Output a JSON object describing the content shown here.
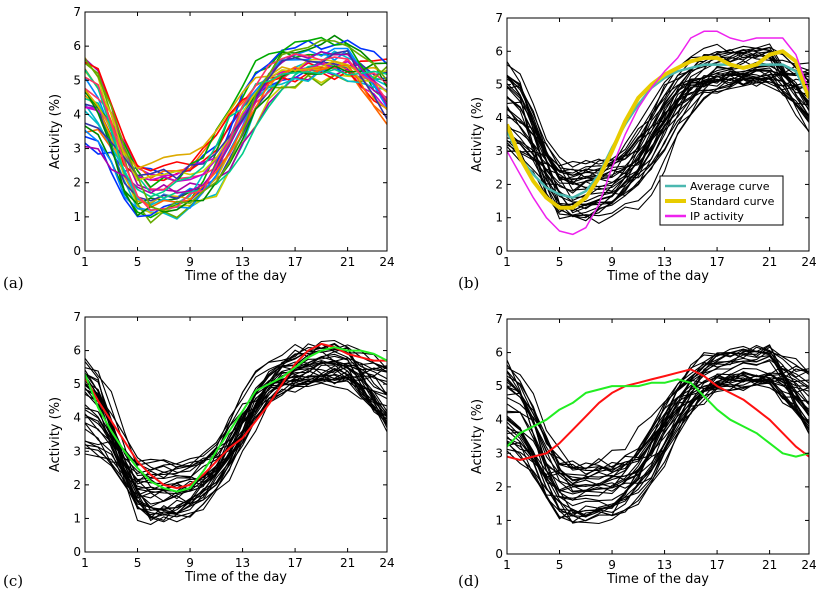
{
  "colors": {
    "black": "#000000",
    "cyan": "#4bb8b0",
    "yellow": "#e8cc00",
    "magenta": "#ee22ee",
    "red": "#ff1111",
    "green": "#22ee22",
    "palette": [
      "#0033ff",
      "#ff0000",
      "#00aa00",
      "#00bbcc",
      "#cc00cc",
      "#cccc00",
      "#0088ff",
      "#ff6600",
      "#008800",
      "#aa00aa",
      "#ddaa00",
      "#3333aa",
      "#00cc88",
      "#ff3366",
      "#66aa00"
    ]
  },
  "chart_data": [
    {
      "type": "line",
      "panel_label": "(a)",
      "xlabel": "Time of the day",
      "ylabel": "Activity (%)",
      "xlim": [
        1,
        24
      ],
      "ylim": [
        0,
        7
      ],
      "xticks": [
        1,
        5,
        9,
        13,
        17,
        21,
        24
      ],
      "yticks": [
        0,
        1,
        2,
        3,
        4,
        5,
        6,
        7
      ],
      "x": [
        1,
        2,
        3,
        4,
        5,
        6,
        7,
        8,
        9,
        10,
        11,
        12,
        13,
        14,
        15,
        16,
        17,
        18,
        19,
        20,
        21,
        22,
        23,
        24
      ],
      "background": "colored",
      "legend": null,
      "extra_series": []
    },
    {
      "type": "line",
      "panel_label": "(b)",
      "xlabel": "Time of the day",
      "ylabel": "Activity (%)",
      "xlim": [
        1,
        24
      ],
      "ylim": [
        0,
        7
      ],
      "xticks": [
        1,
        5,
        9,
        13,
        17,
        21,
        24
      ],
      "yticks": [
        0,
        1,
        2,
        3,
        4,
        5,
        6,
        7
      ],
      "x": [
        1,
        2,
        3,
        4,
        5,
        6,
        7,
        8,
        9,
        10,
        11,
        12,
        13,
        14,
        15,
        16,
        17,
        18,
        19,
        20,
        21,
        22,
        23,
        24
      ],
      "background": "black",
      "legend": {
        "position": "lower-right",
        "entries": [
          {
            "label": "Average curve",
            "color": "#4bb8b0"
          },
          {
            "label": "Standard curve",
            "color": "#e8cc00"
          },
          {
            "label": "IP activity",
            "color": "#ee22ee"
          }
        ]
      },
      "extra_series": [
        {
          "name": "Average curve",
          "color": "#4bb8b0",
          "width": 2.5,
          "values": [
            3.6,
            2.8,
            2.3,
            1.9,
            1.7,
            1.6,
            1.8,
            2.3,
            3.1,
            3.8,
            4.4,
            4.9,
            5.2,
            5.4,
            5.5,
            5.6,
            5.6,
            5.6,
            5.5,
            5.6,
            5.6,
            5.6,
            5.4,
            4.6
          ]
        },
        {
          "name": "Standard curve",
          "color": "#e8cc00",
          "width": 4,
          "values": [
            3.8,
            2.8,
            2.1,
            1.6,
            1.3,
            1.3,
            1.6,
            2.2,
            3.0,
            3.9,
            4.6,
            5.0,
            5.3,
            5.5,
            5.7,
            5.8,
            5.8,
            5.6,
            5.5,
            5.6,
            5.9,
            6.0,
            5.7,
            4.6
          ]
        },
        {
          "name": "IP activity",
          "color": "#ee22ee",
          "width": 1.5,
          "values": [
            3.0,
            2.3,
            1.6,
            1.0,
            0.6,
            0.5,
            0.7,
            1.4,
            2.5,
            3.5,
            4.3,
            4.9,
            5.4,
            5.8,
            6.4,
            6.6,
            6.6,
            6.4,
            6.3,
            6.4,
            6.4,
            6.4,
            5.9,
            4.8
          ]
        }
      ]
    },
    {
      "type": "line",
      "panel_label": "(c)",
      "xlabel": "Time of the day",
      "ylabel": "Activity (%)",
      "xlim": [
        1,
        24
      ],
      "ylim": [
        0,
        7
      ],
      "xticks": [
        1,
        5,
        9,
        13,
        17,
        21,
        24
      ],
      "yticks": [
        0,
        1,
        2,
        3,
        4,
        5,
        6,
        7
      ],
      "x": [
        1,
        2,
        3,
        4,
        5,
        6,
        7,
        8,
        9,
        10,
        11,
        12,
        13,
        14,
        15,
        16,
        17,
        18,
        19,
        20,
        21,
        22,
        23,
        24
      ],
      "background": "black",
      "legend": null,
      "extra_series": [
        {
          "name": "red",
          "color": "#ff1111",
          "width": 2,
          "values": [
            5.2,
            4.5,
            3.9,
            3.3,
            2.7,
            2.3,
            2.0,
            1.9,
            2.0,
            2.3,
            2.7,
            3.1,
            3.4,
            3.9,
            4.4,
            5.0,
            5.6,
            6.0,
            6.2,
            6.1,
            5.9,
            5.8,
            5.7,
            5.7
          ]
        },
        {
          "name": "green",
          "color": "#22ee22",
          "width": 2,
          "values": [
            5.3,
            4.3,
            3.6,
            3.0,
            2.5,
            2.1,
            1.9,
            1.8,
            1.9,
            2.4,
            3.0,
            3.6,
            4.2,
            4.8,
            5.0,
            5.2,
            5.5,
            5.8,
            6.0,
            6.1,
            6.0,
            6.0,
            5.9,
            5.7
          ]
        }
      ]
    },
    {
      "type": "line",
      "panel_label": "(d)",
      "xlabel": "Time of the day",
      "ylabel": "Activity (%)",
      "xlim": [
        1,
        24
      ],
      "ylim": [
        0,
        7
      ],
      "xticks": [
        1,
        5,
        9,
        13,
        17,
        21,
        24
      ],
      "yticks": [
        0,
        1,
        2,
        3,
        4,
        5,
        6,
        7
      ],
      "x": [
        1,
        2,
        3,
        4,
        5,
        6,
        7,
        8,
        9,
        10,
        11,
        12,
        13,
        14,
        15,
        16,
        17,
        18,
        19,
        20,
        21,
        22,
        23,
        24
      ],
      "background": "black",
      "legend": null,
      "extra_series": [
        {
          "name": "red",
          "color": "#ff1111",
          "width": 2,
          "values": [
            2.9,
            2.8,
            2.9,
            3.0,
            3.3,
            3.7,
            4.1,
            4.5,
            4.8,
            5.0,
            5.1,
            5.2,
            5.3,
            5.4,
            5.5,
            5.3,
            5.0,
            4.8,
            4.6,
            4.3,
            4.0,
            3.6,
            3.2,
            2.9
          ]
        },
        {
          "name": "green",
          "color": "#22ee22",
          "width": 2,
          "values": [
            3.2,
            3.6,
            3.8,
            4.0,
            4.3,
            4.5,
            4.8,
            4.9,
            5.0,
            5.0,
            5.0,
            5.1,
            5.1,
            5.2,
            5.1,
            4.7,
            4.3,
            4.0,
            3.8,
            3.6,
            3.3,
            3.0,
            2.9,
            3.0
          ]
        }
      ]
    }
  ]
}
